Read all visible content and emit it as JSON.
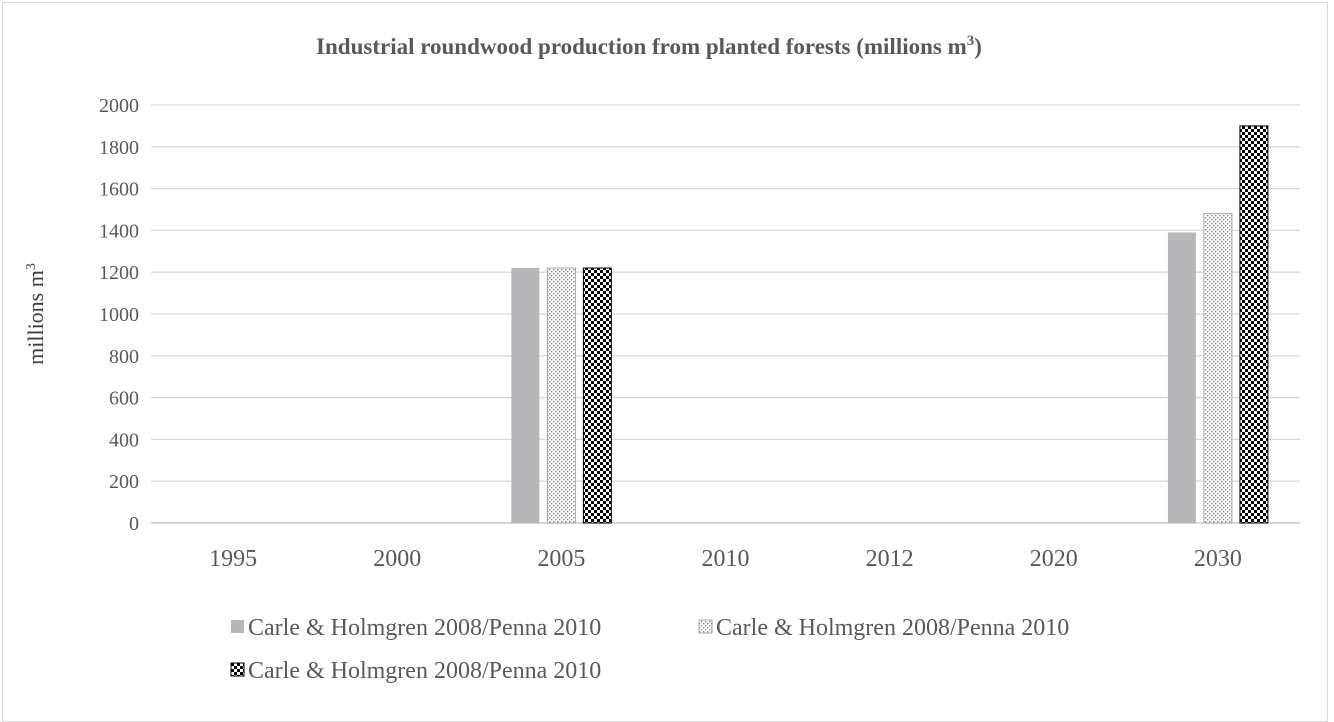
{
  "chart_data": {
    "type": "bar",
    "title": "Industrial roundwood production from planted forests (millions m",
    "title_sup": "3",
    "title_end": ")",
    "ylabel": "millions m",
    "ylabel_sup": "3",
    "xlabel": "",
    "categories": [
      "1995",
      "2000",
      "2005",
      "2010",
      "2012",
      "2020",
      "2030"
    ],
    "series": [
      {
        "name": "Carle & Holmgren 2008/Penna 2010",
        "pattern": "solid",
        "color": "#b7b7b9",
        "values": [
          0,
          0,
          1220,
          0,
          0,
          0,
          1390
        ]
      },
      {
        "name": "Carle & Holmgren 2008/Penna 2010",
        "pattern": "dots",
        "color": "#a6a6a6",
        "values": [
          0,
          0,
          1220,
          0,
          0,
          0,
          1480
        ]
      },
      {
        "name": "Carle & Holmgren 2008/Penna 2010",
        "pattern": "checker",
        "color": "#000000",
        "values": [
          0,
          0,
          1220,
          0,
          0,
          0,
          1900
        ]
      }
    ],
    "yticks": [
      "0",
      "200",
      "400",
      "600",
      "800",
      "1000",
      "1200",
      "1400",
      "1600",
      "1800",
      "2000"
    ],
    "ylim": [
      0,
      2000
    ],
    "grid": true,
    "legend_position": "bottom"
  }
}
